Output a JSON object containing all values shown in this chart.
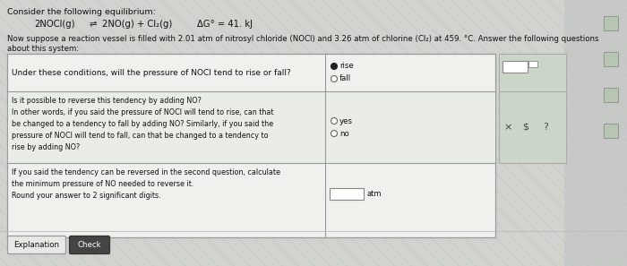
{
  "page_bg": "#c8c8c8",
  "stripe_bg": "#c0ccbc",
  "title_text": "Consider the following equilibrium:",
  "equation_left": "2NOCl(g)",
  "equation_arrow": "⇌",
  "equation_right": "2NO(g) + Cl₂(g)",
  "equation_dg": "ΔG° = 41. kJ",
  "intro_text": "Now suppose a reaction vessel is filled with 2.01 atm of nitrosyl chloride (NOCl) and 3.26 atm of chlorine (Cl₂) at 459. °C. Answer the following questions",
  "intro_text2": "about this system:",
  "row1_question": "Under these conditions, will the pressure of NOCl tend to rise or fall?",
  "row1_opt1": "rise",
  "row1_opt2": "fall",
  "row2_line1": "Is it possible to reverse this tendency by adding NO?",
  "row2_line2": "In other words, if you said the pressure of NOCl will tend to rise, can that",
  "row2_line3": "be changed to a tendency to fall by adding NO? Similarly, if you said the",
  "row2_line4": "pressure of NOCl will tend to fall, can that be changed to a tendency to",
  "row2_line5": "rise by adding NO?",
  "row2_opt1": "yes",
  "row2_opt2": "no",
  "row3_line1": "If you said the tendency can be reversed in the second question, calculate",
  "row3_line2": "the minimum pressure of NO needed to reverse it.",
  "row3_line3": "Round your answer to 2 significant digits.",
  "row3_unit": "atm",
  "btn1_text": "Explanation",
  "btn2_text": "Check",
  "table_bg": "#f0f0ec",
  "cell_bg_stripe": "#e8eae4",
  "border_color": "#999999",
  "right_panel_bg": "#ccd6c8",
  "right_panel_border": "#aaaaaa",
  "btn1_bg": "#e8e8e4",
  "btn2_bg": "#444444",
  "text_color": "#111111",
  "text_color_light": "#333333",
  "radio_fill": "#555555",
  "radio_empty": "#ffffff",
  "input_bg": "#ffffff",
  "icon_bg": "#b8c4b4",
  "icon_border": "#909890"
}
